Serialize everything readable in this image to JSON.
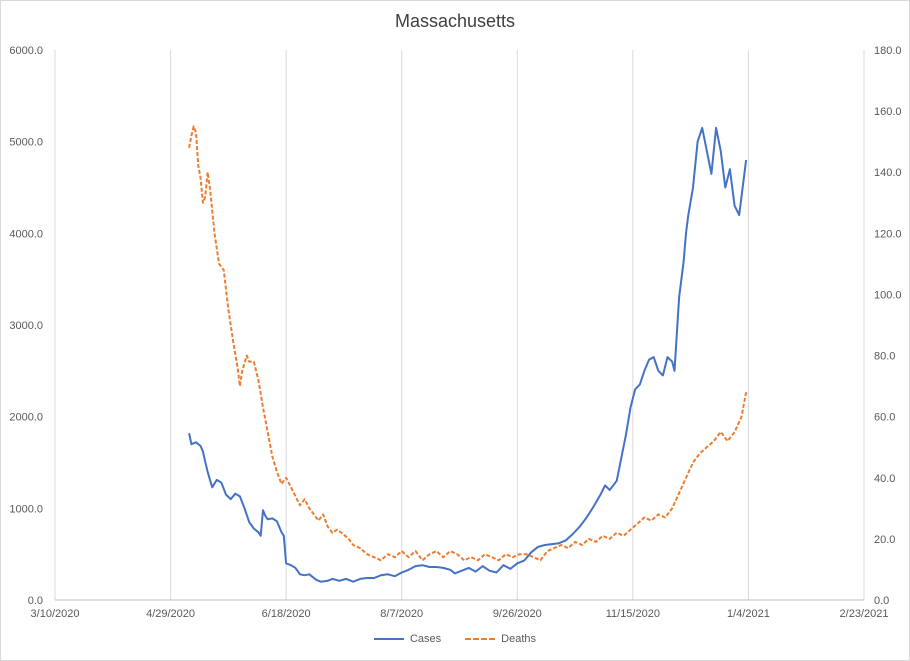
{
  "chart_data": {
    "type": "line",
    "title": "Massachusetts",
    "xlabel": "",
    "ylabel": "",
    "x_tick_labels": [
      "3/10/2020",
      "4/29/2020",
      "6/18/2020",
      "8/7/2020",
      "9/26/2020",
      "11/15/2020",
      "1/4/2021",
      "2/23/2021"
    ],
    "y_left_tick_labels": [
      "0.0",
      "1000.0",
      "2000.0",
      "3000.0",
      "4000.0",
      "5000.0",
      "6000.0"
    ],
    "y_right_tick_labels": [
      "0.0",
      "20.0",
      "40.0",
      "60.0",
      "80.0",
      "100.0",
      "120.0",
      "140.0",
      "160.0",
      "180.0"
    ],
    "xlim": [
      "2020-03-10",
      "2021-02-23"
    ],
    "ylim_left": [
      0,
      6000
    ],
    "ylim_right": [
      0,
      180
    ],
    "grid": "vertical",
    "legend_position": "bottom",
    "series": [
      {
        "name": "Cases",
        "axis": "left",
        "color": "#4472c4",
        "style": "solid",
        "points": [
          [
            "2020-05-07",
            1820
          ],
          [
            "2020-05-08",
            1700
          ],
          [
            "2020-05-10",
            1720
          ],
          [
            "2020-05-12",
            1680
          ],
          [
            "2020-05-13",
            1620
          ],
          [
            "2020-05-15",
            1400
          ],
          [
            "2020-05-17",
            1230
          ],
          [
            "2020-05-19",
            1310
          ],
          [
            "2020-05-21",
            1280
          ],
          [
            "2020-05-23",
            1150
          ],
          [
            "2020-05-25",
            1100
          ],
          [
            "2020-05-27",
            1160
          ],
          [
            "2020-05-29",
            1130
          ],
          [
            "2020-05-31",
            1000
          ],
          [
            "2020-06-02",
            850
          ],
          [
            "2020-06-04",
            780
          ],
          [
            "2020-06-06",
            740
          ],
          [
            "2020-06-07",
            700
          ],
          [
            "2020-06-08",
            980
          ],
          [
            "2020-06-09",
            920
          ],
          [
            "2020-06-10",
            880
          ],
          [
            "2020-06-12",
            890
          ],
          [
            "2020-06-14",
            860
          ],
          [
            "2020-06-16",
            740
          ],
          [
            "2020-06-17",
            700
          ],
          [
            "2020-06-18",
            400
          ],
          [
            "2020-06-20",
            380
          ],
          [
            "2020-06-22",
            350
          ],
          [
            "2020-06-24",
            280
          ],
          [
            "2020-06-26",
            270
          ],
          [
            "2020-06-28",
            280
          ],
          [
            "2020-07-01",
            220
          ],
          [
            "2020-07-03",
            200
          ],
          [
            "2020-07-06",
            210
          ],
          [
            "2020-07-08",
            230
          ],
          [
            "2020-07-11",
            210
          ],
          [
            "2020-07-14",
            230
          ],
          [
            "2020-07-17",
            200
          ],
          [
            "2020-07-20",
            230
          ],
          [
            "2020-07-23",
            240
          ],
          [
            "2020-07-26",
            240
          ],
          [
            "2020-07-29",
            270
          ],
          [
            "2020-08-01",
            280
          ],
          [
            "2020-08-04",
            260
          ],
          [
            "2020-08-07",
            300
          ],
          [
            "2020-08-10",
            330
          ],
          [
            "2020-08-13",
            370
          ],
          [
            "2020-08-16",
            380
          ],
          [
            "2020-08-19",
            360
          ],
          [
            "2020-08-22",
            360
          ],
          [
            "2020-08-25",
            350
          ],
          [
            "2020-08-28",
            330
          ],
          [
            "2020-08-30",
            290
          ],
          [
            "2020-09-02",
            320
          ],
          [
            "2020-09-05",
            350
          ],
          [
            "2020-09-08",
            310
          ],
          [
            "2020-09-11",
            370
          ],
          [
            "2020-09-14",
            320
          ],
          [
            "2020-09-17",
            300
          ],
          [
            "2020-09-20",
            380
          ],
          [
            "2020-09-23",
            340
          ],
          [
            "2020-09-26",
            400
          ],
          [
            "2020-09-29",
            430
          ],
          [
            "2020-10-02",
            520
          ],
          [
            "2020-10-05",
            580
          ],
          [
            "2020-10-08",
            600
          ],
          [
            "2020-10-11",
            610
          ],
          [
            "2020-10-14",
            620
          ],
          [
            "2020-10-17",
            650
          ],
          [
            "2020-10-20",
            720
          ],
          [
            "2020-10-23",
            800
          ],
          [
            "2020-10-26",
            900
          ],
          [
            "2020-10-29",
            1020
          ],
          [
            "2020-11-01",
            1150
          ],
          [
            "2020-11-03",
            1250
          ],
          [
            "2020-11-05",
            1200
          ],
          [
            "2020-11-08",
            1300
          ],
          [
            "2020-11-10",
            1550
          ],
          [
            "2020-11-12",
            1800
          ],
          [
            "2020-11-14",
            2100
          ],
          [
            "2020-11-16",
            2300
          ],
          [
            "2020-11-18",
            2350
          ],
          [
            "2020-11-20",
            2500
          ],
          [
            "2020-11-22",
            2620
          ],
          [
            "2020-11-24",
            2650
          ],
          [
            "2020-11-26",
            2500
          ],
          [
            "2020-11-28",
            2450
          ],
          [
            "2020-11-30",
            2650
          ],
          [
            "2020-12-02",
            2600
          ],
          [
            "2020-12-03",
            2500
          ],
          [
            "2020-12-05",
            3300
          ],
          [
            "2020-12-07",
            3700
          ],
          [
            "2020-12-08",
            4000
          ],
          [
            "2020-12-09",
            4200
          ],
          [
            "2020-12-11",
            4500
          ],
          [
            "2020-12-13",
            5000
          ],
          [
            "2020-12-15",
            5150
          ],
          [
            "2020-12-17",
            4900
          ],
          [
            "2020-12-19",
            4650
          ],
          [
            "2020-12-21",
            5150
          ],
          [
            "2020-12-23",
            4900
          ],
          [
            "2020-12-25",
            4500
          ],
          [
            "2020-12-27",
            4700
          ],
          [
            "2020-12-29",
            4300
          ],
          [
            "2020-12-31",
            4200
          ],
          [
            "2021-01-03",
            4800
          ]
        ]
      },
      {
        "name": "Deaths",
        "axis": "right",
        "color": "#ed7d31",
        "style": "dashed",
        "points": [
          [
            "2020-05-07",
            148
          ],
          [
            "2020-05-08",
            152
          ],
          [
            "2020-05-09",
            155
          ],
          [
            "2020-05-10",
            153
          ],
          [
            "2020-05-11",
            142
          ],
          [
            "2020-05-12",
            138
          ],
          [
            "2020-05-13",
            130
          ],
          [
            "2020-05-14",
            132
          ],
          [
            "2020-05-15",
            140
          ],
          [
            "2020-05-16",
            135
          ],
          [
            "2020-05-18",
            120
          ],
          [
            "2020-05-20",
            110
          ],
          [
            "2020-05-22",
            108
          ],
          [
            "2020-05-24",
            95
          ],
          [
            "2020-05-26",
            85
          ],
          [
            "2020-05-28",
            76
          ],
          [
            "2020-05-29",
            70
          ],
          [
            "2020-05-30",
            75
          ],
          [
            "2020-06-01",
            80
          ],
          [
            "2020-06-02",
            78
          ],
          [
            "2020-06-04",
            78
          ],
          [
            "2020-06-06",
            72
          ],
          [
            "2020-06-08",
            63
          ],
          [
            "2020-06-10",
            55
          ],
          [
            "2020-06-12",
            47
          ],
          [
            "2020-06-14",
            42
          ],
          [
            "2020-06-16",
            38
          ],
          [
            "2020-06-18",
            40
          ],
          [
            "2020-06-20",
            37
          ],
          [
            "2020-06-22",
            34
          ],
          [
            "2020-06-24",
            31
          ],
          [
            "2020-06-26",
            33
          ],
          [
            "2020-06-28",
            30
          ],
          [
            "2020-06-30",
            28
          ],
          [
            "2020-07-02",
            26
          ],
          [
            "2020-07-04",
            28
          ],
          [
            "2020-07-06",
            24
          ],
          [
            "2020-07-08",
            22
          ],
          [
            "2020-07-10",
            23
          ],
          [
            "2020-07-12",
            22
          ],
          [
            "2020-07-15",
            20
          ],
          [
            "2020-07-17",
            18
          ],
          [
            "2020-07-20",
            17
          ],
          [
            "2020-07-23",
            15
          ],
          [
            "2020-07-26",
            14
          ],
          [
            "2020-07-29",
            13
          ],
          [
            "2020-08-01",
            15
          ],
          [
            "2020-08-04",
            14
          ],
          [
            "2020-08-07",
            16
          ],
          [
            "2020-08-10",
            14
          ],
          [
            "2020-08-13",
            16
          ],
          [
            "2020-08-16",
            13
          ],
          [
            "2020-08-19",
            15
          ],
          [
            "2020-08-22",
            16
          ],
          [
            "2020-08-25",
            14
          ],
          [
            "2020-08-28",
            16
          ],
          [
            "2020-08-31",
            15
          ],
          [
            "2020-09-03",
            13
          ],
          [
            "2020-09-06",
            14
          ],
          [
            "2020-09-09",
            13
          ],
          [
            "2020-09-12",
            15
          ],
          [
            "2020-09-15",
            14
          ],
          [
            "2020-09-18",
            13
          ],
          [
            "2020-09-21",
            15
          ],
          [
            "2020-09-24",
            14
          ],
          [
            "2020-09-27",
            15
          ],
          [
            "2020-09-30",
            15
          ],
          [
            "2020-10-03",
            14
          ],
          [
            "2020-10-06",
            13
          ],
          [
            "2020-10-09",
            16
          ],
          [
            "2020-10-12",
            17
          ],
          [
            "2020-10-15",
            18
          ],
          [
            "2020-10-18",
            17
          ],
          [
            "2020-10-21",
            19
          ],
          [
            "2020-10-24",
            18
          ],
          [
            "2020-10-27",
            20
          ],
          [
            "2020-10-30",
            19
          ],
          [
            "2020-11-02",
            21
          ],
          [
            "2020-11-05",
            20
          ],
          [
            "2020-11-08",
            22
          ],
          [
            "2020-11-11",
            21
          ],
          [
            "2020-11-14",
            23
          ],
          [
            "2020-11-17",
            25
          ],
          [
            "2020-11-20",
            27
          ],
          [
            "2020-11-23",
            26
          ],
          [
            "2020-11-26",
            28
          ],
          [
            "2020-11-29",
            27
          ],
          [
            "2020-12-02",
            30
          ],
          [
            "2020-12-05",
            35
          ],
          [
            "2020-12-08",
            40
          ],
          [
            "2020-12-11",
            45
          ],
          [
            "2020-12-14",
            48
          ],
          [
            "2020-12-17",
            50
          ],
          [
            "2020-12-20",
            52
          ],
          [
            "2020-12-23",
            55
          ],
          [
            "2020-12-26",
            52
          ],
          [
            "2020-12-29",
            55
          ],
          [
            "2021-01-01",
            60
          ],
          [
            "2021-01-03",
            68
          ]
        ]
      }
    ]
  },
  "legend": {
    "cases_label": "Cases",
    "deaths_label": "Deaths"
  }
}
